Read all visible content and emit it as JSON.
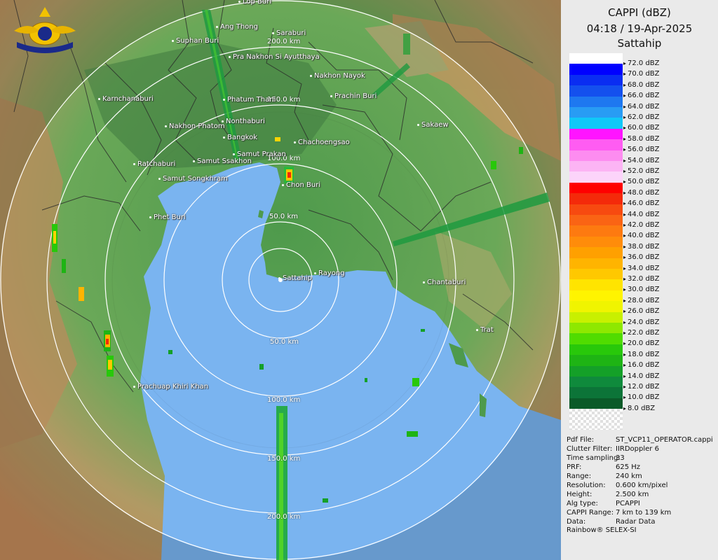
{
  "panel": {
    "title_lines": [
      "CAPPI (dBZ)",
      "04:18 / 19-Apr-2025",
      "Sattahip"
    ],
    "scale": [
      {
        "label": "72.0 dBZ",
        "color": "#ffffff"
      },
      {
        "label": "70.0 dBZ",
        "color": "#0000ff"
      },
      {
        "label": "68.0 dBZ",
        "color": "#0a2df2"
      },
      {
        "label": "66.0 dBZ",
        "color": "#1450ee"
      },
      {
        "label": "64.0 dBZ",
        "color": "#1e78f0"
      },
      {
        "label": "62.0 dBZ",
        "color": "#289cf4"
      },
      {
        "label": "60.0 dBZ",
        "color": "#10c8f8"
      },
      {
        "label": "58.0 dBZ",
        "color": "#ff14ff"
      },
      {
        "label": "56.0 dBZ",
        "color": "#ff5cf2"
      },
      {
        "label": "54.0 dBZ",
        "color": "#fd8cf0"
      },
      {
        "label": "52.0 dBZ",
        "color": "#fcb4f4"
      },
      {
        "label": "50.0 dBZ",
        "color": "#fcd4fa"
      },
      {
        "label": "48.0 dBZ",
        "color": "#ff0000"
      },
      {
        "label": "46.0 dBZ",
        "color": "#f42a0a"
      },
      {
        "label": "44.0 dBZ",
        "color": "#f74a10"
      },
      {
        "label": "42.0 dBZ",
        "color": "#fa6414"
      },
      {
        "label": "40.0 dBZ",
        "color": "#fd7a10"
      },
      {
        "label": "38.0 dBZ",
        "color": "#ff8c0a"
      },
      {
        "label": "36.0 dBZ",
        "color": "#ffa000"
      },
      {
        "label": "34.0 dBZ",
        "color": "#ffb400"
      },
      {
        "label": "32.0 dBZ",
        "color": "#ffc800"
      },
      {
        "label": "30.0 dBZ",
        "color": "#ffe400"
      },
      {
        "label": "28.0 dBZ",
        "color": "#fff400"
      },
      {
        "label": "26.0 dBZ",
        "color": "#f0f400"
      },
      {
        "label": "24.0 dBZ",
        "color": "#c8f000"
      },
      {
        "label": "22.0 dBZ",
        "color": "#8ee800"
      },
      {
        "label": "20.0 dBZ",
        "color": "#50dc00"
      },
      {
        "label": "18.0 dBZ",
        "color": "#28c80a"
      },
      {
        "label": "16.0 dBZ",
        "color": "#1eb414"
      },
      {
        "label": "14.0 dBZ",
        "color": "#14a028"
      },
      {
        "label": "12.0 dBZ",
        "color": "#0f8a3c"
      },
      {
        "label": "10.0 dBZ",
        "color": "#0c7438"
      },
      {
        "label": "8.0 dBZ",
        "color": "#0a5a28"
      },
      {
        "label": "",
        "color": "checker"
      }
    ],
    "info": [
      {
        "key": "Pdf File:",
        "value": "ST_VCP11_OPERATOR.cappi"
      },
      {
        "key": "Clutter Filter:",
        "value": "IIRDoppler 6"
      },
      {
        "key": "Time sampling:",
        "value": "33"
      },
      {
        "key": "PRF:",
        "value": "625 Hz"
      },
      {
        "key": "Range:",
        "value": "240 km"
      },
      {
        "key": "Resolution:",
        "value": "0.600 km/pixel"
      },
      {
        "key": "Height:",
        "value": "2.500 km"
      },
      {
        "key": "Alg type:",
        "value": "PCAPPI"
      },
      {
        "key": "CAPPI Range:",
        "value": "7 km to 139 km"
      },
      {
        "key": "Data:",
        "value": "Radar Data"
      }
    ],
    "footer": "Rainbow® SELEX-SI"
  },
  "map": {
    "colors": {
      "sea": "#7ab4f0",
      "land_low": "#5a9a50",
      "land_high": "#c8a070",
      "land_coast": "#98c080",
      "ring": "#ffffff",
      "boundary": "#2a2a2a"
    },
    "ring_labels": [
      "50.0 km",
      "100.0 km",
      "150.0 km",
      "200.0 km"
    ],
    "places": [
      {
        "name": "Suphan Buri"
      },
      {
        "name": "Ang Thong"
      },
      {
        "name": "Saraburi"
      },
      {
        "name": "Pra Nakhon Si Ayutthaya"
      },
      {
        "name": "Nakhon Nayok"
      },
      {
        "name": "Prachin Buri"
      },
      {
        "name": "Karnchanaburi"
      },
      {
        "name": "Phatum Thani"
      },
      {
        "name": "Sakaew"
      },
      {
        "name": "Nakhon Phatom"
      },
      {
        "name": "Nonthaburi"
      },
      {
        "name": "Bangkok"
      },
      {
        "name": "Chachoengsao"
      },
      {
        "name": "Samut Prakan"
      },
      {
        "name": "Ratchaburi"
      },
      {
        "name": "Samut Ssakhon"
      },
      {
        "name": "Samut Songkhram"
      },
      {
        "name": "Chon Buri"
      },
      {
        "name": "Phet Buri"
      },
      {
        "name": "Sattahip"
      },
      {
        "name": "Rayong"
      },
      {
        "name": "Chantaburi"
      },
      {
        "name": "Trat"
      },
      {
        "name": "Prachuap Khiri Khan"
      },
      {
        "name": "Lop Buri"
      }
    ]
  }
}
